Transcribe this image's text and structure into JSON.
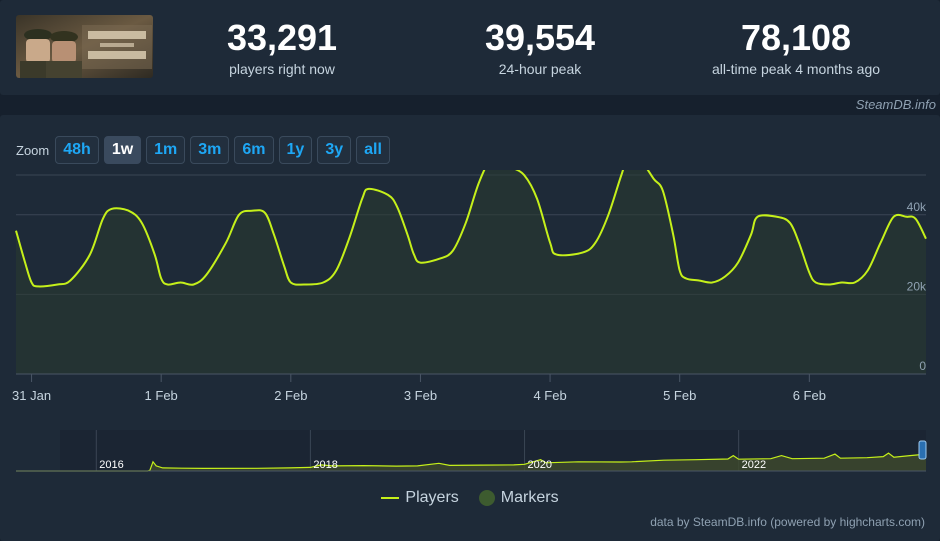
{
  "stats": [
    {
      "value": "33,291",
      "label": "players right now"
    },
    {
      "value": "39,554",
      "label": "24-hour peak"
    },
    {
      "value": "78,108",
      "label": "all-time peak 4 months ago"
    }
  ],
  "credit": "SteamDB.info",
  "zoom": {
    "label": "Zoom",
    "buttons": [
      {
        "label": "48h",
        "active": false
      },
      {
        "label": "1w",
        "active": true
      },
      {
        "label": "1m",
        "active": false
      },
      {
        "label": "3m",
        "active": false
      },
      {
        "label": "6m",
        "active": false
      },
      {
        "label": "1y",
        "active": false
      },
      {
        "label": "3y",
        "active": false
      },
      {
        "label": "all",
        "active": false
      }
    ]
  },
  "legend": {
    "players": "Players",
    "markers": "Markers"
  },
  "footer": "data by SteamDB.info (powered by highcharts.com)",
  "colors": {
    "line": "#c5f01a",
    "grid": "#3a4554",
    "accent": "#1ea7f5",
    "navigator_fill": "#3f4a2c"
  },
  "chart_data": {
    "type": "line",
    "series_name": "Players",
    "x_unit": "day offset from 31 Jan",
    "x_range": [
      -0.12,
      6.9
    ],
    "ylim": [
      0,
      50000
    ],
    "y_ticks": [
      0,
      20000,
      40000
    ],
    "y_tick_labels": [
      "0",
      "20k",
      "40k"
    ],
    "x_ticks": [
      0,
      1,
      2,
      3,
      4,
      5,
      6
    ],
    "x_tick_labels": [
      "31 Jan",
      "1 Feb",
      "2 Feb",
      "3 Feb",
      "4 Feb",
      "5 Feb",
      "6 Feb"
    ],
    "grid": true,
    "points": [
      [
        -0.12,
        36000
      ],
      [
        -0.05,
        28000
      ],
      [
        0.0,
        23000
      ],
      [
        0.05,
        22000
      ],
      [
        0.2,
        22500
      ],
      [
        0.3,
        23500
      ],
      [
        0.45,
        30000
      ],
      [
        0.55,
        39000
      ],
      [
        0.62,
        41500
      ],
      [
        0.75,
        41000
      ],
      [
        0.85,
        38000
      ],
      [
        0.95,
        30000
      ],
      [
        1.0,
        24000
      ],
      [
        1.05,
        22500
      ],
      [
        1.15,
        23000
      ],
      [
        1.25,
        22500
      ],
      [
        1.35,
        25000
      ],
      [
        1.5,
        33000
      ],
      [
        1.6,
        40000
      ],
      [
        1.7,
        41000
      ],
      [
        1.8,
        40500
      ],
      [
        1.87,
        35000
      ],
      [
        1.95,
        27000
      ],
      [
        2.0,
        23000
      ],
      [
        2.1,
        22500
      ],
      [
        2.25,
        23000
      ],
      [
        2.35,
        26000
      ],
      [
        2.45,
        34000
      ],
      [
        2.55,
        44000
      ],
      [
        2.6,
        46500
      ],
      [
        2.75,
        45000
      ],
      [
        2.82,
        42000
      ],
      [
        2.9,
        35000
      ],
      [
        2.95,
        30000
      ],
      [
        3.0,
        28000
      ],
      [
        3.15,
        29000
      ],
      [
        3.25,
        31000
      ],
      [
        3.35,
        38000
      ],
      [
        3.45,
        48000
      ],
      [
        3.55,
        54500
      ],
      [
        3.62,
        54000
      ],
      [
        3.7,
        52000
      ],
      [
        3.8,
        50000
      ],
      [
        3.9,
        44000
      ],
      [
        4.0,
        33000
      ],
      [
        4.05,
        30000
      ],
      [
        4.25,
        30500
      ],
      [
        4.35,
        33000
      ],
      [
        4.45,
        40000
      ],
      [
        4.55,
        50000
      ],
      [
        4.6,
        54000
      ],
      [
        4.7,
        53500
      ],
      [
        4.8,
        49000
      ],
      [
        4.87,
        46000
      ],
      [
        4.95,
        35000
      ],
      [
        5.0,
        26000
      ],
      [
        5.05,
        24000
      ],
      [
        5.15,
        23500
      ],
      [
        5.25,
        23000
      ],
      [
        5.35,
        24500
      ],
      [
        5.45,
        28000
      ],
      [
        5.55,
        35000
      ],
      [
        5.6,
        39500
      ],
      [
        5.75,
        39500
      ],
      [
        5.85,
        38000
      ],
      [
        5.92,
        33000
      ],
      [
        6.0,
        25500
      ],
      [
        6.05,
        23000
      ],
      [
        6.15,
        22500
      ],
      [
        6.25,
        23000
      ],
      [
        6.35,
        23000
      ],
      [
        6.45,
        26000
      ],
      [
        6.55,
        33000
      ],
      [
        6.65,
        39500
      ],
      [
        6.75,
        39500
      ],
      [
        6.82,
        39000
      ],
      [
        6.9,
        34000
      ]
    ]
  },
  "navigator": {
    "x_range": [
      2015.25,
      2023.75
    ],
    "year_ticks": [
      2016,
      2018,
      2020,
      2022
    ],
    "year_tick_labels": [
      "2016",
      "2018",
      "2020",
      "2022"
    ],
    "ylim": [
      0,
      80000
    ],
    "points": [
      [
        2015.25,
        0
      ],
      [
        2016.48,
        0
      ],
      [
        2016.5,
        1000
      ],
      [
        2016.53,
        18000
      ],
      [
        2016.56,
        10000
      ],
      [
        2016.62,
        6000
      ],
      [
        2016.8,
        5500
      ],
      [
        2017.0,
        5000
      ],
      [
        2017.5,
        5200
      ],
      [
        2017.8,
        6000
      ],
      [
        2018.0,
        7000
      ],
      [
        2018.1,
        12000
      ],
      [
        2018.2,
        10000
      ],
      [
        2018.5,
        10500
      ],
      [
        2018.8,
        9500
      ],
      [
        2019.0,
        10000
      ],
      [
        2019.2,
        15000
      ],
      [
        2019.3,
        11000
      ],
      [
        2019.6,
        11500
      ],
      [
        2019.9,
        12000
      ],
      [
        2020.0,
        13000
      ],
      [
        2020.15,
        22000
      ],
      [
        2020.2,
        16000
      ],
      [
        2020.5,
        18000
      ],
      [
        2020.9,
        17500
      ],
      [
        2021.0,
        18000
      ],
      [
        2021.3,
        21000
      ],
      [
        2021.6,
        22000
      ],
      [
        2021.9,
        23500
      ],
      [
        2021.95,
        30000
      ],
      [
        2022.0,
        23000
      ],
      [
        2022.3,
        24000
      ],
      [
        2022.4,
        30000
      ],
      [
        2022.5,
        24000
      ],
      [
        2022.8,
        25000
      ],
      [
        2022.9,
        33000
      ],
      [
        2022.95,
        25000
      ],
      [
        2023.2,
        26000
      ],
      [
        2023.35,
        28000
      ],
      [
        2023.4,
        35000
      ],
      [
        2023.45,
        27000
      ],
      [
        2023.6,
        30000
      ],
      [
        2023.7,
        32000
      ],
      [
        2023.75,
        28000
      ]
    ]
  }
}
